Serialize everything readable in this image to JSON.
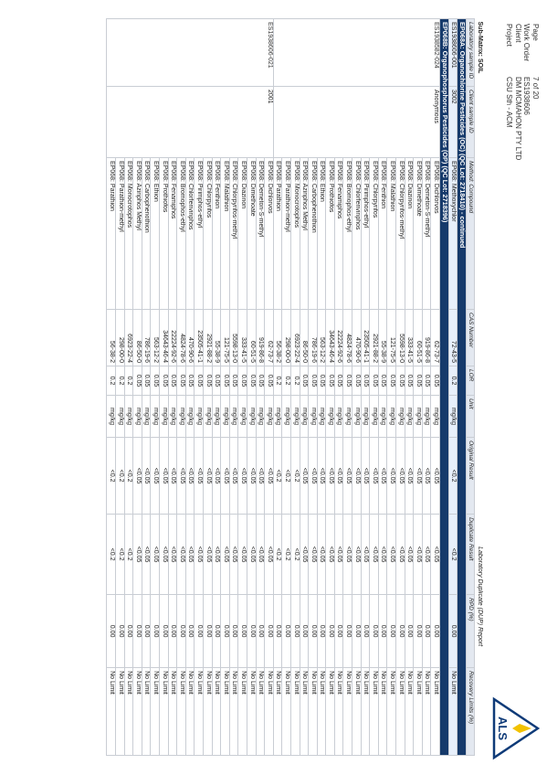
{
  "header": {
    "page_label": "Page",
    "page_value": "7 of 20",
    "work_order_label": "Work Order",
    "work_order_value": "ES1938606",
    "client_label": "Client",
    "client_value": "DM MCMAHON PTY LTD",
    "project_label": "Project",
    "project_value": "CSU Sth - ACM"
  },
  "logo": {
    "text": "ALS"
  },
  "submatrix": {
    "label": "Sub-Matrix:",
    "value": "SOIL"
  },
  "table": {
    "headers": {
      "lab_sample": "Laboratory sample ID",
      "client_sample": "Client sample ID",
      "method": "Method: Compound",
      "cas": "CAS Number",
      "lor": "LOR",
      "unit": "Unit",
      "group": "Laboratory Duplicate (DUP) Report",
      "original": "Original Result",
      "duplicate": "Duplicate Result",
      "rpd": "RPD (%)",
      "recovery": "Recovery Limits (%)"
    },
    "section1": "EP068A: Organochlorine Pesticides (OC)  (QC Lot: 2718410) - continued",
    "section1_row": {
      "lab": "ES1938606-001",
      "client": "3002",
      "method": "EP068: Methoxychlor",
      "cas": "72-43-5",
      "lor": "0.2",
      "unit": "mg/kg",
      "orig": "<0.2",
      "dup": "<0.2",
      "rpd": "0.00",
      "rec": "No Limit"
    },
    "section2": "EP068B: Organophosphorus Pesticides (OP)  (QC Lot: 2718396)",
    "group_a": {
      "lab": "ES1938582-024",
      "client": "Anonymous"
    },
    "group_b": {
      "lab": "ES1938606-021",
      "client": "2001"
    },
    "rows_a": [
      {
        "method": "EP068: Dichlorvos",
        "cas": "62-73-7",
        "lor": "0.05",
        "unit": "mg/kg",
        "orig": "<0.05",
        "dup": "<0.05",
        "rpd": "0.00",
        "rec": "No Limit"
      },
      {
        "method": "EP068: Demeton-S-methyl",
        "cas": "919-86-8",
        "lor": "0.05",
        "unit": "mg/kg",
        "orig": "<0.05",
        "dup": "<0.05",
        "rpd": "0.00",
        "rec": "No Limit"
      },
      {
        "method": "EP068: Dimethoate",
        "cas": "60-51-5",
        "lor": "0.05",
        "unit": "mg/kg",
        "orig": "<0.05",
        "dup": "<0.05",
        "rpd": "0.00",
        "rec": "No Limit"
      },
      {
        "method": "EP068: Diazinon",
        "cas": "333-41-5",
        "lor": "0.05",
        "unit": "mg/kg",
        "orig": "<0.05",
        "dup": "<0.05",
        "rpd": "0.00",
        "rec": "No Limit"
      },
      {
        "method": "EP068: Chlorpyrifos-methyl",
        "cas": "5598-13-0",
        "lor": "0.05",
        "unit": "mg/kg",
        "orig": "<0.05",
        "dup": "<0.05",
        "rpd": "0.00",
        "rec": "No Limit"
      },
      {
        "method": "EP068: Malathion",
        "cas": "121-75-5",
        "lor": "0.05",
        "unit": "mg/kg",
        "orig": "<0.05",
        "dup": "<0.05",
        "rpd": "0.00",
        "rec": "No Limit"
      },
      {
        "method": "EP068: Fenthion",
        "cas": "55-38-9",
        "lor": "0.05",
        "unit": "mg/kg",
        "orig": "<0.05",
        "dup": "<0.05",
        "rpd": "0.00",
        "rec": "No Limit"
      },
      {
        "method": "EP068: Chlorpyrifos",
        "cas": "2921-88-2",
        "lor": "0.05",
        "unit": "mg/kg",
        "orig": "<0.05",
        "dup": "<0.05",
        "rpd": "0.00",
        "rec": "No Limit"
      },
      {
        "method": "EP068: Pirimphos-ethyl",
        "cas": "23505-41-1",
        "lor": "0.05",
        "unit": "mg/kg",
        "orig": "<0.05",
        "dup": "<0.05",
        "rpd": "0.00",
        "rec": "No Limit"
      },
      {
        "method": "EP068: Chlorfenvinphos",
        "cas": "470-90-6",
        "lor": "0.05",
        "unit": "mg/kg",
        "orig": "<0.05",
        "dup": "<0.05",
        "rpd": "0.00",
        "rec": "No Limit"
      },
      {
        "method": "EP068: Bromophos-ethyl",
        "cas": "4824-78-6",
        "lor": "0.05",
        "unit": "mg/kg",
        "orig": "<0.05",
        "dup": "<0.05",
        "rpd": "0.00",
        "rec": "No Limit"
      },
      {
        "method": "EP068: Fenamiphos",
        "cas": "22224-92-6",
        "lor": "0.05",
        "unit": "mg/kg",
        "orig": "<0.05",
        "dup": "<0.05",
        "rpd": "0.00",
        "rec": "No Limit"
      },
      {
        "method": "EP068: Prothiofos",
        "cas": "34643-46-4",
        "lor": "0.05",
        "unit": "mg/kg",
        "orig": "<0.05",
        "dup": "<0.05",
        "rpd": "0.00",
        "rec": "No Limit"
      },
      {
        "method": "EP068: Ethion",
        "cas": "563-12-2",
        "lor": "0.05",
        "unit": "mg/kg",
        "orig": "<0.05",
        "dup": "<0.05",
        "rpd": "0.00",
        "rec": "No Limit"
      },
      {
        "method": "EP068: Carbophenothion",
        "cas": "786-19-6",
        "lor": "0.05",
        "unit": "mg/kg",
        "orig": "<0.05",
        "dup": "<0.05",
        "rpd": "0.00",
        "rec": "No Limit"
      },
      {
        "method": "EP068: Azinphos Methyl",
        "cas": "86-50-0",
        "lor": "0.05",
        "unit": "mg/kg",
        "orig": "<0.05",
        "dup": "<0.05",
        "rpd": "0.00",
        "rec": "No Limit"
      },
      {
        "method": "EP068: Monocrotophos",
        "cas": "6923-22-4",
        "lor": "0.2",
        "unit": "mg/kg",
        "orig": "<0.2",
        "dup": "<0.2",
        "rpd": "0.00",
        "rec": "No Limit"
      },
      {
        "method": "EP068: Parathion-methyl",
        "cas": "298-00-0",
        "lor": "0.2",
        "unit": "mg/kg",
        "orig": "<0.2",
        "dup": "<0.2",
        "rpd": "0.00",
        "rec": "No Limit"
      },
      {
        "method": "EP068: Parathion",
        "cas": "56-38-2",
        "lor": "0.2",
        "unit": "mg/kg",
        "orig": "<0.2",
        "dup": "<0.2",
        "rpd": "0.00",
        "rec": "No Limit"
      }
    ],
    "rows_b": [
      {
        "method": "EP068: Dichlorvos",
        "cas": "62-73-7",
        "lor": "0.05",
        "unit": "mg/kg",
        "orig": "<0.05",
        "dup": "<0.05",
        "rpd": "0.00",
        "rec": "No Limit"
      },
      {
        "method": "EP068: Demeton-S-methyl",
        "cas": "919-86-8",
        "lor": "0.05",
        "unit": "mg/kg",
        "orig": "<0.05",
        "dup": "<0.05",
        "rpd": "0.00",
        "rec": "No Limit"
      },
      {
        "method": "EP068: Dimethoate",
        "cas": "60-51-5",
        "lor": "0.05",
        "unit": "mg/kg",
        "orig": "<0.05",
        "dup": "<0.05",
        "rpd": "0.00",
        "rec": "No Limit"
      },
      {
        "method": "EP068: Diazinon",
        "cas": "333-41-5",
        "lor": "0.05",
        "unit": "mg/kg",
        "orig": "<0.05",
        "dup": "<0.05",
        "rpd": "0.00",
        "rec": "No Limit"
      },
      {
        "method": "EP068: Chlorpyrifos-methyl",
        "cas": "5598-13-0",
        "lor": "0.05",
        "unit": "mg/kg",
        "orig": "<0.05",
        "dup": "<0.05",
        "rpd": "0.00",
        "rec": "No Limit"
      },
      {
        "method": "EP068: Malathion",
        "cas": "121-75-5",
        "lor": "0.05",
        "unit": "mg/kg",
        "orig": "<0.05",
        "dup": "<0.05",
        "rpd": "0.00",
        "rec": "No Limit"
      },
      {
        "method": "EP068: Fenthion",
        "cas": "55-38-9",
        "lor": "0.05",
        "unit": "mg/kg",
        "orig": "<0.05",
        "dup": "<0.05",
        "rpd": "0.00",
        "rec": "No Limit"
      },
      {
        "method": "EP068: Chlorpyrifos",
        "cas": "2921-88-2",
        "lor": "0.05",
        "unit": "mg/kg",
        "orig": "<0.05",
        "dup": "<0.05",
        "rpd": "0.00",
        "rec": "No Limit"
      },
      {
        "method": "EP068: Pirimphos-ethyl",
        "cas": "23505-41-1",
        "lor": "0.05",
        "unit": "mg/kg",
        "orig": "<0.05",
        "dup": "<0.05",
        "rpd": "0.00",
        "rec": "No Limit"
      },
      {
        "method": "EP068: Chlorfenvinphos",
        "cas": "470-90-6",
        "lor": "0.05",
        "unit": "mg/kg",
        "orig": "<0.05",
        "dup": "<0.05",
        "rpd": "0.00",
        "rec": "No Limit"
      },
      {
        "method": "EP068: Bromophos-ethyl",
        "cas": "4824-78-6",
        "lor": "0.05",
        "unit": "mg/kg",
        "orig": "<0.05",
        "dup": "<0.05",
        "rpd": "0.00",
        "rec": "No Limit"
      },
      {
        "method": "EP068: Fenamiphos",
        "cas": "22224-92-6",
        "lor": "0.05",
        "unit": "mg/kg",
        "orig": "<0.05",
        "dup": "<0.05",
        "rpd": "0.00",
        "rec": "No Limit"
      },
      {
        "method": "EP068: Prothiofos",
        "cas": "34643-46-4",
        "lor": "0.05",
        "unit": "mg/kg",
        "orig": "<0.05",
        "dup": "<0.05",
        "rpd": "0.00",
        "rec": "No Limit"
      },
      {
        "method": "EP068: Ethion",
        "cas": "563-12-2",
        "lor": "0.05",
        "unit": "mg/kg",
        "orig": "<0.05",
        "dup": "<0.05",
        "rpd": "0.00",
        "rec": "No Limit"
      },
      {
        "method": "EP068: Carbophenothion",
        "cas": "786-19-6",
        "lor": "0.05",
        "unit": "mg/kg",
        "orig": "<0.05",
        "dup": "<0.05",
        "rpd": "0.00",
        "rec": "No Limit"
      },
      {
        "method": "EP068: Azinphos Methyl",
        "cas": "86-50-0",
        "lor": "0.05",
        "unit": "mg/kg",
        "orig": "<0.05",
        "dup": "<0.05",
        "rpd": "0.00",
        "rec": "No Limit"
      },
      {
        "method": "EP068: Monocrotophos",
        "cas": "6923-22-4",
        "lor": "0.2",
        "unit": "mg/kg",
        "orig": "<0.2",
        "dup": "<0.2",
        "rpd": "0.00",
        "rec": "No Limit"
      },
      {
        "method": "EP068: Parathion-methyl",
        "cas": "298-00-0",
        "lor": "0.2",
        "unit": "mg/kg",
        "orig": "<0.2",
        "dup": "<0.2",
        "rpd": "0.00",
        "rec": "No Limit"
      },
      {
        "method": "EP068: Parathion",
        "cas": "56-38-2",
        "lor": "0.2",
        "unit": "mg/kg",
        "orig": "<0.2",
        "dup": "<0.2",
        "rpd": "0.00",
        "rec": "No Limit"
      }
    ]
  },
  "colors": {
    "section_bar": "#163a6b",
    "header_bg": "#e3e8f0",
    "logo_blue": "#0e3a78",
    "logo_yellow": "#f2c200"
  }
}
